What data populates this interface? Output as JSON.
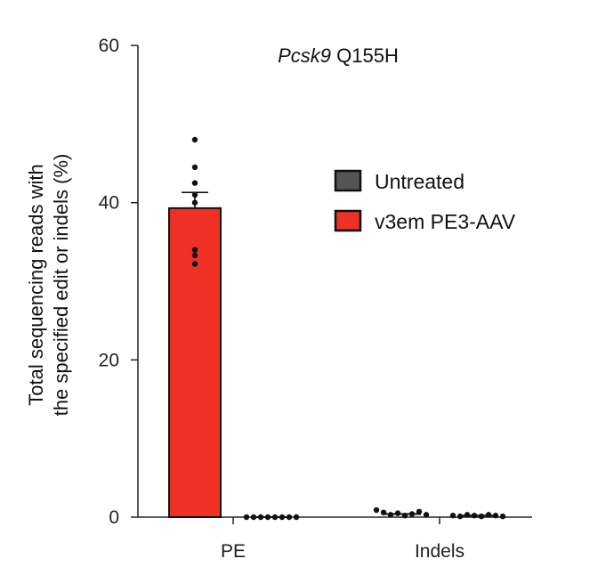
{
  "chart_data": {
    "type": "bar",
    "title_italic": "Pcsk9",
    "title_rest": " Q155H",
    "ylabel_line1": "Total sequencing reads with",
    "ylabel_line2": "the specified edit or indels (%)",
    "xlabel": "",
    "ylim": [
      0,
      60
    ],
    "yticks": [
      0,
      20,
      40,
      60
    ],
    "categories": [
      "PE",
      "Indels"
    ],
    "legend_position": "right",
    "series": [
      {
        "name": "Untreated",
        "color": "#555555",
        "values": [
          0.0,
          0.2
        ],
        "errors": [
          0.0,
          0.05
        ],
        "points": [
          [
            0,
            0,
            0,
            0,
            0,
            0,
            0,
            0
          ],
          [
            0.2,
            0.1,
            0.3,
            0.2,
            0.1,
            0.3,
            0.2,
            0.1
          ]
        ]
      },
      {
        "name": "v3em PE3-AAV",
        "color": "#ee3124",
        "values": [
          39.3,
          0.4
        ],
        "errors": [
          2.0,
          0.1
        ],
        "points": [
          [
            48.0,
            44.5,
            42.5,
            40.0,
            34.0,
            33.3,
            32.2,
            41.0
          ],
          [
            0.9,
            0.6,
            0.3,
            0.5,
            0.2,
            0.4,
            0.7,
            0.3
          ]
        ]
      }
    ]
  }
}
